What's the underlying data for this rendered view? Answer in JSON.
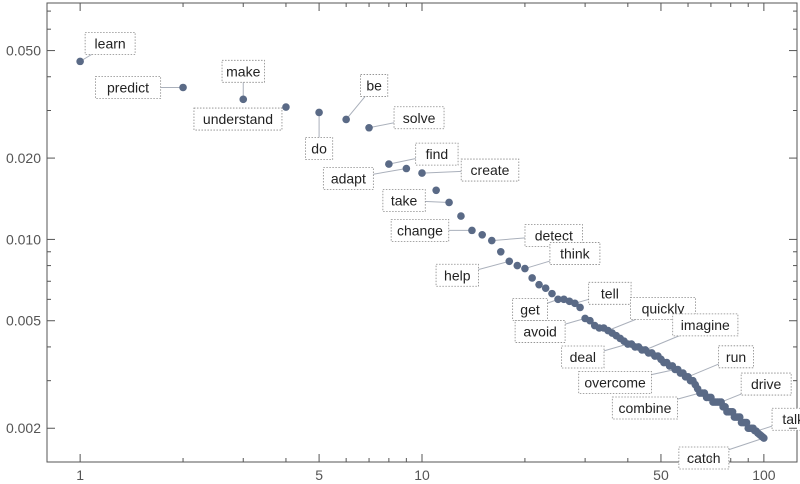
{
  "chart_data": {
    "type": "scatter",
    "title": "",
    "xlabel": "",
    "ylabel": "",
    "x_scale": "log",
    "y_scale": "log",
    "xlim": [
      0.8,
      125
    ],
    "ylim": [
      0.0015,
      0.075
    ],
    "x_ticks": [
      {
        "value": 1,
        "label": "1"
      },
      {
        "value": 5,
        "label": "5"
      },
      {
        "value": 10,
        "label": "10"
      },
      {
        "value": 50,
        "label": "50"
      },
      {
        "value": 100,
        "label": "100"
      }
    ],
    "y_ticks": [
      {
        "value": 0.05,
        "label": "0.050"
      },
      {
        "value": 0.02,
        "label": "0.020"
      },
      {
        "value": 0.01,
        "label": "0.010"
      },
      {
        "value": 0.005,
        "label": "0.005"
      },
      {
        "value": 0.002,
        "label": "0.002"
      }
    ],
    "point_color": "#5a6a86",
    "labeled_points": [
      {
        "rank": 1,
        "word": "learn",
        "value": 0.0456
      },
      {
        "rank": 2,
        "word": "predict",
        "value": 0.0365
      },
      {
        "rank": 3,
        "word": "make",
        "value": 0.033
      },
      {
        "rank": 4,
        "word": "understand",
        "value": 0.0309
      },
      {
        "rank": 5,
        "word": "do",
        "value": 0.0295
      },
      {
        "rank": 6,
        "word": "be",
        "value": 0.0278
      },
      {
        "rank": 7,
        "word": "solve",
        "value": 0.0259
      },
      {
        "rank": 8,
        "word": "find",
        "value": 0.019
      },
      {
        "rank": 9,
        "word": "adapt",
        "value": 0.0183
      },
      {
        "rank": 10,
        "word": "create",
        "value": 0.0176
      },
      {
        "rank": 12,
        "word": "take",
        "value": 0.0137
      },
      {
        "rank": 14,
        "word": "change",
        "value": 0.0108
      },
      {
        "rank": 16,
        "word": "detect",
        "value": 0.0099
      },
      {
        "rank": 18,
        "word": "help",
        "value": 0.0083
      },
      {
        "rank": 20,
        "word": "think",
        "value": 0.0078
      },
      {
        "rank": 25,
        "word": "get",
        "value": 0.006
      },
      {
        "rank": 28,
        "word": "tell",
        "value": 0.0058
      },
      {
        "rank": 30,
        "word": "avoid",
        "value": 0.0051
      },
      {
        "rank": 35,
        "word": "quickly",
        "value": 0.0046
      },
      {
        "rank": 40,
        "word": "deal",
        "value": 0.0041
      },
      {
        "rank": 45,
        "word": "imagine",
        "value": 0.0039
      },
      {
        "rank": 55,
        "word": "overcome",
        "value": 0.0033
      },
      {
        "rank": 60,
        "word": "run",
        "value": 0.0031
      },
      {
        "rank": 65,
        "word": "combine",
        "value": 0.0027
      },
      {
        "rank": 75,
        "word": "drive",
        "value": 0.0025
      },
      {
        "rank": 95,
        "word": "talk",
        "value": 0.00195
      },
      {
        "rank": 100,
        "word": "catch",
        "value": 0.00184
      }
    ],
    "points": [
      [
        1,
        0.0456
      ],
      [
        2,
        0.0365
      ],
      [
        3,
        0.033
      ],
      [
        4,
        0.0309
      ],
      [
        5,
        0.0295
      ],
      [
        6,
        0.0278
      ],
      [
        7,
        0.0259
      ],
      [
        8,
        0.019
      ],
      [
        9,
        0.0183
      ],
      [
        10,
        0.0176
      ],
      [
        11,
        0.0152
      ],
      [
        12,
        0.0137
      ],
      [
        13,
        0.0122
      ],
      [
        14,
        0.0108
      ],
      [
        15,
        0.0104
      ],
      [
        16,
        0.0099
      ],
      [
        17,
        0.009
      ],
      [
        18,
        0.0083
      ],
      [
        19,
        0.008
      ],
      [
        20,
        0.0078
      ],
      [
        21,
        0.0072
      ],
      [
        22,
        0.0068
      ],
      [
        23,
        0.0066
      ],
      [
        24,
        0.0063
      ],
      [
        25,
        0.006
      ],
      [
        26,
        0.006
      ],
      [
        27,
        0.0059
      ],
      [
        28,
        0.0058
      ],
      [
        29,
        0.0056
      ],
      [
        30,
        0.0051
      ],
      [
        31,
        0.005
      ],
      [
        32,
        0.0048
      ],
      [
        33,
        0.0047
      ],
      [
        34,
        0.0047
      ],
      [
        35,
        0.0046
      ],
      [
        36,
        0.0045
      ],
      [
        37,
        0.0044
      ],
      [
        38,
        0.0043
      ],
      [
        39,
        0.0042
      ],
      [
        40,
        0.0041
      ],
      [
        41,
        0.0041
      ],
      [
        42,
        0.004
      ],
      [
        43,
        0.004
      ],
      [
        44,
        0.0039
      ],
      [
        45,
        0.0039
      ],
      [
        46,
        0.0038
      ],
      [
        47,
        0.0038
      ],
      [
        48,
        0.0037
      ],
      [
        49,
        0.0037
      ],
      [
        50,
        0.0036
      ],
      [
        51,
        0.0035
      ],
      [
        52,
        0.0035
      ],
      [
        53,
        0.0034
      ],
      [
        54,
        0.0034
      ],
      [
        55,
        0.0033
      ],
      [
        56,
        0.0033
      ],
      [
        57,
        0.0032
      ],
      [
        58,
        0.0032
      ],
      [
        59,
        0.0031
      ],
      [
        60,
        0.0031
      ],
      [
        61,
        0.003
      ],
      [
        62,
        0.003
      ],
      [
        63,
        0.0029
      ],
      [
        64,
        0.0028
      ],
      [
        65,
        0.0027
      ],
      [
        66,
        0.0027
      ],
      [
        67,
        0.0027
      ],
      [
        68,
        0.0026
      ],
      [
        69,
        0.0026
      ],
      [
        70,
        0.0026
      ],
      [
        71,
        0.0025
      ],
      [
        72,
        0.0025
      ],
      [
        73,
        0.0025
      ],
      [
        74,
        0.0025
      ],
      [
        75,
        0.0025
      ],
      [
        76,
        0.0024
      ],
      [
        77,
        0.0024
      ],
      [
        78,
        0.0023
      ],
      [
        79,
        0.0023
      ],
      [
        80,
        0.0023
      ],
      [
        81,
        0.0023
      ],
      [
        82,
        0.0022
      ],
      [
        83,
        0.0022
      ],
      [
        84,
        0.0022
      ],
      [
        85,
        0.0022
      ],
      [
        86,
        0.0021
      ],
      [
        87,
        0.0021
      ],
      [
        88,
        0.0021
      ],
      [
        89,
        0.0021
      ],
      [
        90,
        0.002
      ],
      [
        91,
        0.002
      ],
      [
        92,
        0.002
      ],
      [
        93,
        0.002
      ],
      [
        94,
        0.00196
      ],
      [
        95,
        0.00195
      ],
      [
        96,
        0.00192
      ],
      [
        97,
        0.0019
      ],
      [
        98,
        0.00188
      ],
      [
        99,
        0.00186
      ],
      [
        100,
        0.00184
      ]
    ]
  }
}
